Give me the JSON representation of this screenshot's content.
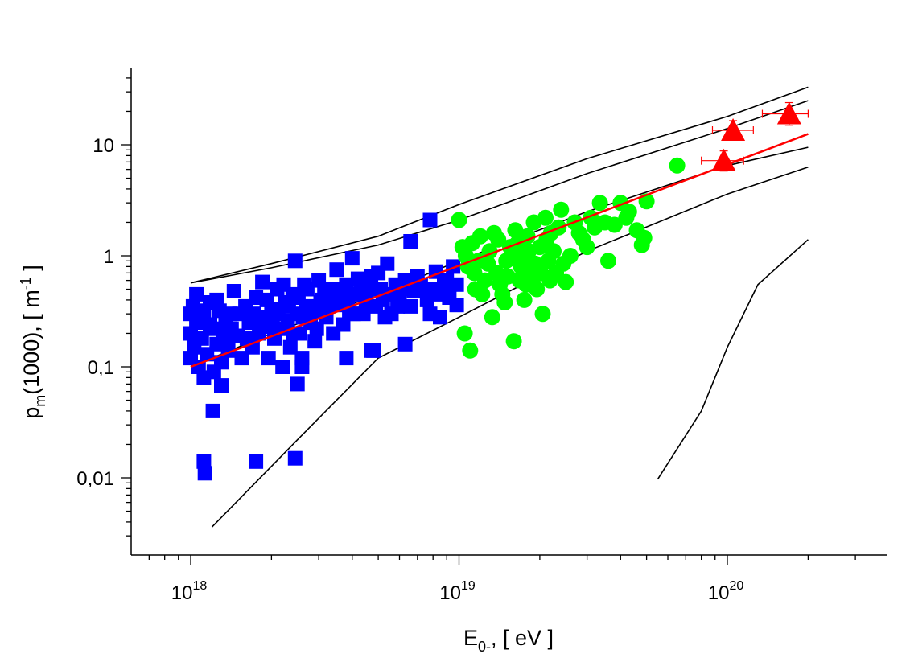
{
  "chart_data": {
    "type": "scatter",
    "title": "",
    "xlabel": {
      "main": "E",
      "sub": "0-",
      "rest": ",  [ eV ]"
    },
    "ylabel": {
      "main": "p",
      "sub": "m",
      "mid": "(1000),  [ m",
      "sup": "-1",
      "end": " ]"
    },
    "x_scale": "log",
    "y_scale": "log",
    "xlim": [
      6e+17,
      4e+20
    ],
    "ylim": [
      0.0025,
      55
    ],
    "x_ticks": [
      {
        "value": 1e+18,
        "base": "10",
        "exp": "18"
      },
      {
        "value": 1e+19,
        "base": "10",
        "exp": "19"
      },
      {
        "value": 1e+20,
        "base": "10",
        "exp": "20"
      }
    ],
    "y_ticks": [
      {
        "value": 0.01,
        "label": "0,01"
      },
      {
        "value": 0.1,
        "label": "0,1"
      },
      {
        "value": 1,
        "label": "1"
      },
      {
        "value": 10,
        "label": "10"
      }
    ],
    "grid": false,
    "legend": "none",
    "series": [
      {
        "marker": "square",
        "color": "#0000ff",
        "points": [
          [
            1e+18,
            0.12
          ],
          [
            1e+18,
            0.2
          ],
          [
            1e+18,
            0.3
          ],
          [
            1.02e+18,
            0.35
          ],
          [
            1.03e+18,
            0.15
          ],
          [
            1.05e+18,
            0.25
          ],
          [
            1.07e+18,
            0.1
          ],
          [
            1.1e+18,
            0.18
          ],
          [
            1.12e+18,
            0.28
          ],
          [
            1.15e+18,
            0.13
          ],
          [
            1.18e+18,
            0.38
          ],
          [
            1.2e+18,
            0.22
          ],
          [
            1.22e+18,
            0.09
          ],
          [
            1.25e+18,
            0.16
          ],
          [
            1.28e+18,
            0.32
          ],
          [
            1.3e+18,
            0.11
          ],
          [
            1.32e+18,
            0.2
          ],
          [
            1.35e+18,
            0.26
          ],
          [
            1.38e+18,
            0.14
          ],
          [
            1.4e+18,
            0.3
          ],
          [
            1.45e+18,
            0.48
          ],
          [
            1.5e+18,
            0.19
          ],
          [
            1.55e+18,
            0.12
          ],
          [
            1.6e+18,
            0.35
          ],
          [
            1.65e+18,
            0.25
          ],
          [
            1.7e+18,
            0.15
          ],
          [
            1.75e+18,
            0.42
          ],
          [
            1.8e+18,
            0.2
          ],
          [
            1.85e+18,
            0.58
          ],
          [
            1.9e+18,
            0.28
          ],
          [
            1.95e+18,
            0.12
          ],
          [
            2e+18,
            0.33
          ],
          [
            2.05e+18,
            0.18
          ],
          [
            2.1e+18,
            0.5
          ],
          [
            2.15e+18,
            0.22
          ],
          [
            2.2e+18,
            0.1
          ],
          [
            2.25e+18,
            0.38
          ],
          [
            2.3e+18,
            0.26
          ],
          [
            2.35e+18,
            0.15
          ],
          [
            2.4e+18,
            0.45
          ],
          [
            2.45e+18,
            0.9
          ],
          [
            2.5e+18,
            0.3
          ],
          [
            2.55e+18,
            0.2
          ],
          [
            2.6e+18,
            0.12
          ],
          [
            2.65e+18,
            0.55
          ],
          [
            2.7e+18,
            0.35
          ],
          [
            2.8e+18,
            0.25
          ],
          [
            2.9e+18,
            0.17
          ],
          [
            3e+18,
            0.6
          ],
          [
            3.1e+18,
            0.4
          ],
          [
            3.2e+18,
            0.28
          ],
          [
            3.3e+18,
            0.5
          ],
          [
            3.4e+18,
            0.2
          ],
          [
            3.5e+18,
            0.75
          ],
          [
            3.6e+18,
            0.36
          ],
          [
            3.7e+18,
            0.24
          ],
          [
            3.8e+18,
            0.55
          ],
          [
            3.9e+18,
            0.3
          ],
          [
            4e+18,
            0.95
          ],
          [
            4.1e+18,
            0.45
          ],
          [
            4.2e+18,
            0.62
          ],
          [
            4.4e+18,
            0.3
          ],
          [
            4.6e+18,
            0.5
          ],
          [
            4.8e+18,
            0.14
          ],
          [
            5e+18,
            0.7
          ],
          [
            5.2e+18,
            0.4
          ],
          [
            5.4e+18,
            0.85
          ],
          [
            5.6e+18,
            0.3
          ],
          [
            5.8e+18,
            0.55
          ],
          [
            6e+18,
            0.45
          ],
          [
            6.3e+18,
            0.6
          ],
          [
            6.6e+18,
            0.35
          ],
          [
            7e+18,
            0.65
          ],
          [
            7.4e+18,
            0.5
          ],
          [
            7.8e+18,
            0.3
          ],
          [
            8.2e+18,
            0.72
          ],
          [
            8.6e+18,
            0.45
          ],
          [
            9e+18,
            0.6
          ],
          [
            9.5e+18,
            0.8
          ],
          [
            9.8e+18,
            0.55
          ],
          [
            1.05e+18,
            0.45
          ],
          [
            1.1e+18,
            0.32
          ],
          [
            1.18e+18,
            0.24
          ],
          [
            1.25e+18,
            0.4
          ],
          [
            1.35e+18,
            0.17
          ],
          [
            1.42e+18,
            0.22
          ],
          [
            1.52e+18,
            0.3
          ],
          [
            1.62e+18,
            0.18
          ],
          [
            1.72e+18,
            0.3
          ],
          [
            1.82e+18,
            0.24
          ],
          [
            1.92e+18,
            0.4
          ],
          [
            2.02e+18,
            0.23
          ],
          [
            2.12e+18,
            0.3
          ],
          [
            2.22e+18,
            0.55
          ],
          [
            2.32e+18,
            0.35
          ],
          [
            2.42e+18,
            0.2
          ],
          [
            2.52e+18,
            0.42
          ],
          [
            2.62e+18,
            0.28
          ],
          [
            2.72e+18,
            0.5
          ],
          [
            2.85e+18,
            0.32
          ],
          [
            2.95e+18,
            0.22
          ],
          [
            3.05e+18,
            0.38
          ],
          [
            3.15e+18,
            0.5
          ],
          [
            3.25e+18,
            0.35
          ],
          [
            3.45e+18,
            0.42
          ],
          [
            3.65e+18,
            0.5
          ],
          [
            3.85e+18,
            0.4
          ],
          [
            4.05e+18,
            0.3
          ],
          [
            4.3e+18,
            0.55
          ],
          [
            4.5e+18,
            0.4
          ],
          [
            4.7e+18,
            0.65
          ],
          [
            4.9e+18,
            0.35
          ],
          [
            5.1e+18,
            0.5
          ],
          [
            5.3e+18,
            0.28
          ],
          [
            5.5e+18,
            0.45
          ],
          [
            5.9e+18,
            0.35
          ],
          [
            6.2e+18,
            0.5
          ],
          [
            6.8e+18,
            0.48
          ],
          [
            7.2e+18,
            0.55
          ],
          [
            7.6e+18,
            0.4
          ],
          [
            8e+18,
            0.5
          ],
          [
            8.8e+18,
            0.55
          ],
          [
            9.2e+18,
            0.42
          ],
          [
            7.8e+18,
            2.1
          ],
          [
            6.6e+18,
            1.35
          ],
          [
            1.21e+18,
            0.04
          ],
          [
            1.12e+18,
            0.014
          ],
          [
            1.13e+18,
            0.011
          ],
          [
            1.75e+18,
            0.014
          ],
          [
            2.45e+18,
            0.015
          ],
          [
            1.3e+18,
            0.068
          ],
          [
            2.5e+18,
            0.07
          ],
          [
            1.12e+18,
            0.08
          ],
          [
            3.8e+18,
            0.12
          ],
          [
            4.7e+18,
            0.14
          ],
          [
            6.3e+18,
            0.16
          ],
          [
            2.6e+18,
            0.1
          ],
          [
            9.8e+18,
            0.36
          ],
          [
            8.5e+18,
            0.28
          ]
        ]
      },
      {
        "marker": "circle",
        "color": "#00ff00",
        "points": [
          [
            1e+19,
            2.1
          ],
          [
            1.03e+19,
            1.2
          ],
          [
            1.05e+19,
            0.2
          ],
          [
            1.08e+19,
            0.8
          ],
          [
            1.1e+19,
            0.14
          ],
          [
            1.12e+19,
            1.3
          ],
          [
            1.15e+19,
            0.5
          ],
          [
            1.18e+19,
            0.9
          ],
          [
            1.2e+19,
            1.5
          ],
          [
            1.25e+19,
            0.6
          ],
          [
            1.3e+19,
            1.1
          ],
          [
            1.33e+19,
            0.28
          ],
          [
            1.38e+19,
            0.7
          ],
          [
            1.4e+19,
            1.4
          ],
          [
            1.45e+19,
            0.45
          ],
          [
            1.5e+19,
            0.9
          ],
          [
            1.55e+19,
            1.2
          ],
          [
            1.6e+19,
            0.17
          ],
          [
            1.62e+19,
            1.7
          ],
          [
            1.68e+19,
            0.6
          ],
          [
            1.72e+19,
            1.0
          ],
          [
            1.75e+19,
            0.4
          ],
          [
            1.8e+19,
            1.5
          ],
          [
            1.85e+19,
            0.75
          ],
          [
            1.9e+19,
            2.0
          ],
          [
            1.95e+19,
            0.5
          ],
          [
            2e+19,
            1.2
          ],
          [
            2.05e+19,
            0.3
          ],
          [
            2.1e+19,
            2.2
          ],
          [
            2.15e+19,
            0.9
          ],
          [
            2.2e+19,
            1.6
          ],
          [
            2.3e+19,
            0.7
          ],
          [
            2.4e+19,
            2.6
          ],
          [
            2.5e+19,
            0.58
          ],
          [
            2.6e+19,
            1.0
          ],
          [
            2.8e+19,
            1.6
          ],
          [
            3e+19,
            1.2
          ],
          [
            3.2e+19,
            1.8
          ],
          [
            3.35e+19,
            3.0
          ],
          [
            3.6e+19,
            0.9
          ],
          [
            3.8e+19,
            1.9
          ],
          [
            4e+19,
            3.0
          ],
          [
            4.3e+19,
            2.5
          ],
          [
            4.6e+19,
            1.7
          ],
          [
            4.8e+19,
            1.25
          ],
          [
            5e+19,
            3.1
          ],
          [
            4.9e+19,
            1.45
          ],
          [
            6.5e+19,
            6.5
          ],
          [
            1.06e+19,
            1.0
          ],
          [
            1.14e+19,
            0.7
          ],
          [
            1.22e+19,
            0.45
          ],
          [
            1.28e+19,
            0.85
          ],
          [
            1.35e+19,
            1.6
          ],
          [
            1.42e+19,
            0.55
          ],
          [
            1.48e+19,
            0.38
          ],
          [
            1.52e+19,
            0.65
          ],
          [
            1.58e+19,
            0.95
          ],
          [
            1.65e+19,
            1.3
          ],
          [
            1.7e+19,
            0.8
          ],
          [
            1.78e+19,
            0.55
          ],
          [
            1.82e+19,
            1.1
          ],
          [
            1.88e+19,
            0.6
          ],
          [
            1.92e+19,
            0.85
          ],
          [
            2.02e+19,
            0.7
          ],
          [
            2.12e+19,
            1.4
          ],
          [
            2.18e+19,
            0.6
          ],
          [
            2.25e+19,
            1.1
          ],
          [
            2.35e+19,
            1.8
          ],
          [
            2.45e+19,
            0.85
          ],
          [
            2.7e+19,
            2.0
          ],
          [
            2.9e+19,
            1.4
          ],
          [
            3.1e+19,
            2.2
          ],
          [
            3.5e+19,
            2.0
          ],
          [
            4.2e+19,
            2.2
          ]
        ]
      },
      {
        "marker": "triangle",
        "color": "#ff0000",
        "error_bars": true,
        "points": [
          {
            "x": 9.7e+19,
            "y": 7.2,
            "xerr": [
              8e+19,
              1.15e+20
            ],
            "yerr": [
              5.8,
              8.8
            ]
          },
          {
            "x": 1.05e+20,
            "y": 13.5,
            "xerr": [
              8.8e+19,
              1.25e+20
            ],
            "yerr": [
              11.0,
              16.5
            ]
          },
          {
            "x": 1.7e+20,
            "y": 19.0,
            "xerr": [
              1.35e+20,
              2e+20
            ],
            "yerr": [
              15.0,
              24.0
            ]
          }
        ]
      }
    ],
    "lines": [
      {
        "style": "fit",
        "color": "#ff0000",
        "points": [
          [
            1e+18,
            0.1
          ],
          [
            2e+20,
            12.5
          ]
        ]
      },
      {
        "style": "model",
        "color": "#000000",
        "points": [
          [
            1e+18,
            0.57
          ],
          [
            2e+18,
            0.85
          ],
          [
            5e+18,
            1.5
          ],
          [
            1e+19,
            2.9
          ],
          [
            3e+19,
            7.5
          ],
          [
            1e+20,
            18.0
          ],
          [
            2e+20,
            33.0
          ]
        ]
      },
      {
        "style": "model",
        "color": "#000000",
        "points": [
          [
            1e+18,
            0.57
          ],
          [
            2e+18,
            0.78
          ],
          [
            5e+18,
            1.25
          ],
          [
            1e+19,
            2.1
          ],
          [
            3e+19,
            5.5
          ],
          [
            1e+20,
            14.0
          ],
          [
            2e+20,
            25.0
          ]
        ]
      },
      {
        "style": "model",
        "color": "#000000",
        "points": [
          [
            1e+18,
            0.1
          ],
          [
            2e+18,
            0.2
          ],
          [
            5e+18,
            0.45
          ],
          [
            1e+19,
            0.9
          ],
          [
            3e+19,
            2.5
          ],
          [
            1e+20,
            6.5
          ],
          [
            2e+20,
            9.5
          ]
        ]
      },
      {
        "style": "model",
        "color": "#000000",
        "points": [
          [
            1.2e+18,
            0.0036
          ],
          [
            2.5e+18,
            0.022
          ],
          [
            5e+18,
            0.12
          ],
          [
            1e+19,
            0.28
          ],
          [
            3e+19,
            1.1
          ],
          [
            1e+20,
            3.6
          ],
          [
            2e+20,
            6.3
          ]
        ]
      },
      {
        "style": "model",
        "color": "#000000",
        "points": [
          [
            5.5e+19,
            0.0097
          ],
          [
            8e+19,
            0.04
          ],
          [
            1e+20,
            0.15
          ],
          [
            1.3e+20,
            0.55
          ],
          [
            2e+20,
            1.4
          ]
        ]
      }
    ]
  }
}
